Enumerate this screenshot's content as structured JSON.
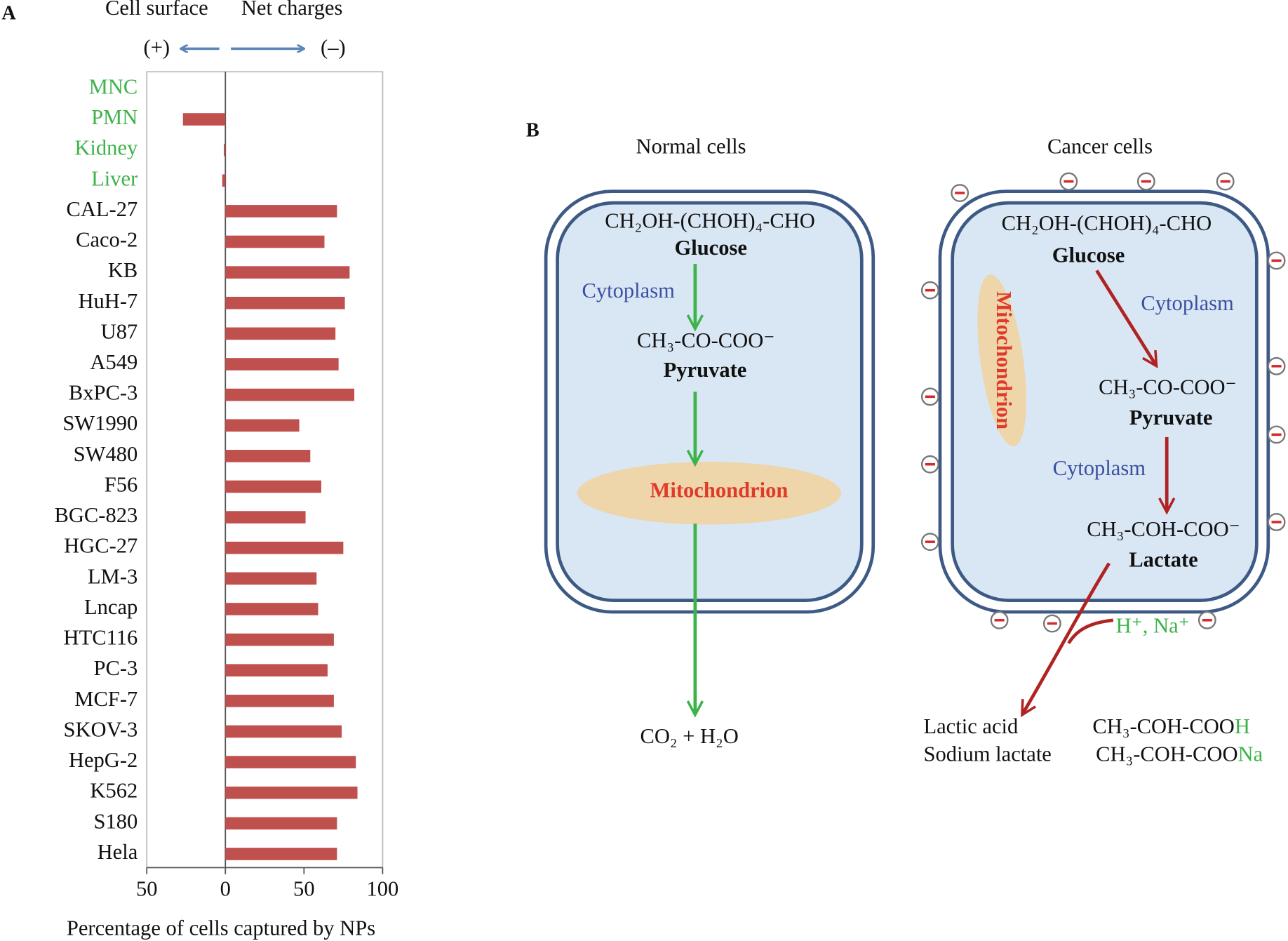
{
  "chart_data": {
    "type": "hbar",
    "panel_label": "A",
    "header_left": "Cell surface",
    "header_right": "Net charges",
    "left_direction": "(+)",
    "right_direction": "(–)",
    "x_label": "Percentage of cells captured by NPs",
    "categories": [
      "MNC",
      "PMN",
      "Kidney",
      "Liver",
      "CAL-27",
      "Caco-2",
      "KB",
      "HuH-7",
      "U87",
      "A549",
      "BxPC-3",
      "SW1990",
      "SW480",
      "F56",
      "BGC-823",
      "HGC-27",
      "LM-3",
      "Lncap",
      "HTC116",
      "PC-3",
      "MCF-7",
      "SKOV-3",
      "HepG-2",
      "K562",
      "S180",
      "Hela"
    ],
    "label_colors": [
      "#3db34a",
      "#3db34a",
      "#3db34a",
      "#3db34a",
      "#111111",
      "#111111",
      "#111111",
      "#111111",
      "#111111",
      "#111111",
      "#111111",
      "#111111",
      "#111111",
      "#111111",
      "#111111",
      "#111111",
      "#111111",
      "#111111",
      "#111111",
      "#111111",
      "#111111",
      "#111111",
      "#111111",
      "#111111",
      "#111111",
      "#111111"
    ],
    "values": [
      0,
      -27,
      -1,
      -2,
      71,
      63,
      79,
      76,
      70,
      72,
      82,
      47,
      54,
      61,
      51,
      75,
      58,
      59,
      69,
      65,
      69,
      74,
      83,
      84,
      71,
      71
    ],
    "color": "#c0504d",
    "xlim": [
      -50,
      100
    ],
    "xticks": [
      {
        "value": -50,
        "label": "50"
      },
      0,
      50,
      100
    ],
    "grid": false
  },
  "diagram": {
    "panel_label": "B",
    "normal": {
      "title": "Normal cells",
      "glucose_formula": "CH₂OH-(CHOH)₄-CHO",
      "glucose": "Glucose",
      "cytoplasm": "Cytoplasm",
      "pyruvate_formula": "CH₃-CO-COO⁻",
      "pyruvate": "Pyruvate",
      "mitochondrion": "Mitochondrion",
      "products": "CO₂ + H₂O"
    },
    "cancer": {
      "title": "Cancer cells",
      "glucose_formula": "CH₂OH-(CHOH)₄-CHO",
      "glucose": "Glucose",
      "cytoplasm_1": "Cytoplasm",
      "pyruvate_formula": "CH₃-CO-COO⁻",
      "pyruvate": "Pyruvate",
      "cytoplasm_2": "Cytoplasm",
      "lactate_formula": "CH₃-COH-COO⁻",
      "lactate": "Lactate",
      "mitochondrion": "Mitochondrion",
      "ions": "H⁺,  Na⁺",
      "products": [
        {
          "name": "Lactic acid",
          "formula": "CH₃-COH-COO",
          "formula_suffix": "H"
        },
        {
          "name": "Sodium lactate",
          "formula": "CH₃-COH-COO",
          "formula_suffix": "Na"
        }
      ]
    }
  }
}
